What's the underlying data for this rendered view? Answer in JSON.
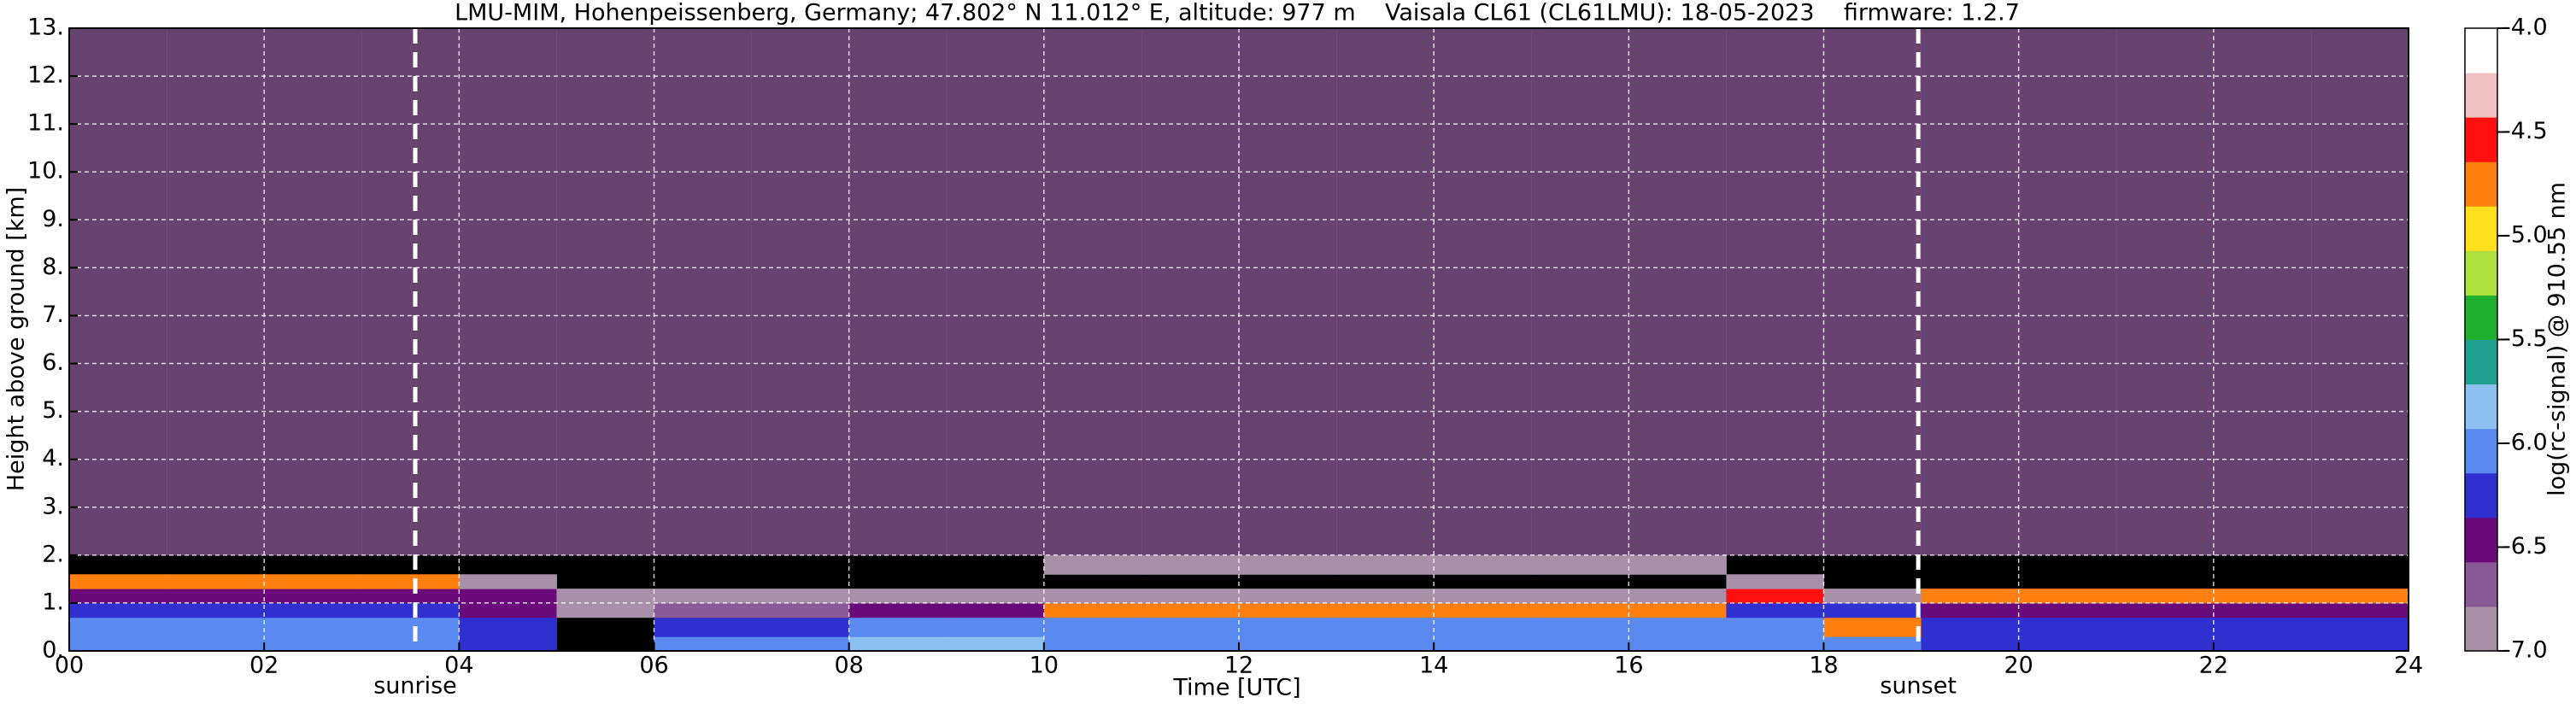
{
  "chart_data": {
    "type": "heatmap",
    "title": "LMU-MIM, Hohenpeissenberg, Germany; 47.802° N 11.012° E, altitude: 977 m    Vaisala CL61 (CL61LMU): 18-05-2023    firmware: 1.2.7",
    "xlabel": "Time [UTC]",
    "ylabel": "Height above ground [km]",
    "colorbar_label": "log(rc-signal) @ 910.55 nm",
    "xlim": [
      0,
      24
    ],
    "ylim": [
      0,
      13
    ],
    "xticks": [
      {
        "value": 0,
        "label": "00"
      },
      {
        "value": 2,
        "label": "02"
      },
      {
        "value": 4,
        "label": "04"
      },
      {
        "value": 6,
        "label": "06"
      },
      {
        "value": 8,
        "label": "08"
      },
      {
        "value": 10,
        "label": "10"
      },
      {
        "value": 12,
        "label": "12"
      },
      {
        "value": 14,
        "label": "14"
      },
      {
        "value": 16,
        "label": "16"
      },
      {
        "value": 18,
        "label": "18"
      },
      {
        "value": 20,
        "label": "20"
      },
      {
        "value": 22,
        "label": "22"
      },
      {
        "value": 24,
        "label": "24"
      }
    ],
    "yticks": [
      {
        "value": 0,
        "label": "0."
      },
      {
        "value": 1,
        "label": "1."
      },
      {
        "value": 2,
        "label": "2."
      },
      {
        "value": 3,
        "label": "3."
      },
      {
        "value": 4,
        "label": "4."
      },
      {
        "value": 5,
        "label": "5."
      },
      {
        "value": 6,
        "label": "6."
      },
      {
        "value": 7,
        "label": "7."
      },
      {
        "value": 8,
        "label": "8."
      },
      {
        "value": 9,
        "label": "9."
      },
      {
        "value": 10,
        "label": "10."
      },
      {
        "value": 11,
        "label": "11."
      },
      {
        "value": 12,
        "label": "12."
      },
      {
        "value": 13,
        "label": "13."
      }
    ],
    "grid": true,
    "clim": [
      -7,
      -4
    ],
    "cticks": [
      {
        "value": -4,
        "label": "-4.0"
      },
      {
        "value": -4.5,
        "label": "-4.5"
      },
      {
        "value": -5,
        "label": "-5.0"
      },
      {
        "value": -5.5,
        "label": "-5.5"
      },
      {
        "value": -6,
        "label": "-6.0"
      },
      {
        "value": -6.5,
        "label": "-6.5"
      },
      {
        "value": -7,
        "label": "-7.0"
      }
    ],
    "colors": [
      "#a890a8",
      "#8a5a96",
      "#6a0a7a",
      "#3030d0",
      "#5a8af0",
      "#8cc0f0",
      "#20a090",
      "#20b030",
      "#b0e040",
      "#ffe020",
      "#ff8010",
      "#ff1010",
      "#f0c0c0",
      "#ffffff"
    ],
    "xbins": [
      0,
      1,
      2,
      3,
      4,
      5,
      6,
      7,
      8,
      9,
      10,
      11,
      12,
      13,
      14,
      15,
      16,
      17,
      18,
      19,
      20,
      21,
      22,
      23,
      24
    ],
    "ybins": [
      0,
      0.3,
      0.7,
      1.0,
      1.3,
      1.6,
      2,
      13
    ],
    "z": [
      [
        -6.0,
        -6.0,
        -6.0,
        -6.0,
        -6.2,
        null,
        -6.0,
        -6.0,
        -5.9,
        -5.9,
        -6.1,
        -6.1,
        -6.1,
        -6.1,
        -6.1,
        -6.1,
        -6.1,
        -6.1,
        -6.1,
        -6.2,
        -6.2,
        -6.2,
        -6.2,
        -6.2
      ],
      [
        -6.1,
        -6.1,
        -6.1,
        -6.1,
        -6.3,
        null,
        -6.3,
        -6.3,
        -6.1,
        -6.1,
        -6.1,
        -6.1,
        -6.1,
        -6.1,
        -6.1,
        -6.1,
        -6.1,
        -6.0,
        -4.8,
        -6.35,
        -6.35,
        -6.35,
        -6.35,
        -6.35
      ],
      [
        -6.3,
        -6.3,
        -6.3,
        -6.3,
        -6.4,
        -6.9,
        -6.6,
        -6.6,
        -6.4,
        -6.4,
        -4.8,
        -4.8,
        -4.8,
        -4.8,
        -4.8,
        -4.8,
        -4.8,
        -6.3,
        -6.3,
        -6.45,
        -6.45,
        -6.45,
        -6.45,
        -6.45
      ],
      [
        -6.4,
        -6.4,
        -6.4,
        -6.4,
        -6.45,
        -6.9,
        -6.9,
        -6.9,
        -6.8,
        -6.8,
        -6.8,
        -6.8,
        -6.8,
        -6.8,
        -6.8,
        -6.8,
        -6.8,
        -4.6,
        -6.9,
        -4.7,
        -4.7,
        -4.7,
        -4.7,
        -4.7
      ],
      [
        -4.8,
        -4.8,
        -4.8,
        -4.8,
        -6.9,
        null,
        null,
        null,
        null,
        null,
        null,
        null,
        null,
        null,
        null,
        null,
        null,
        -6.9,
        null,
        null,
        null,
        null,
        null,
        null
      ],
      [
        null,
        null,
        null,
        null,
        null,
        null,
        null,
        null,
        null,
        null,
        -6.8,
        -6.8,
        -6.8,
        -6.8,
        -6.8,
        -6.8,
        -6.8,
        null,
        null,
        null,
        null,
        null,
        null,
        null
      ],
      [
        -6.7,
        -6.7,
        -6.7,
        -6.7,
        -6.7,
        -6.6,
        -6.6,
        -6.6,
        -6.6,
        -6.6,
        -6.6,
        -6.6,
        -6.6,
        -6.6,
        -6.6,
        -6.6,
        -6.6,
        -6.6,
        -6.7,
        -6.7,
        -6.7,
        -6.7,
        -6.7,
        -6.7
      ]
    ],
    "annotations": [
      {
        "text": "sunrise",
        "x": 3.55
      },
      {
        "text": "sunset",
        "x": 18.97
      }
    ]
  }
}
